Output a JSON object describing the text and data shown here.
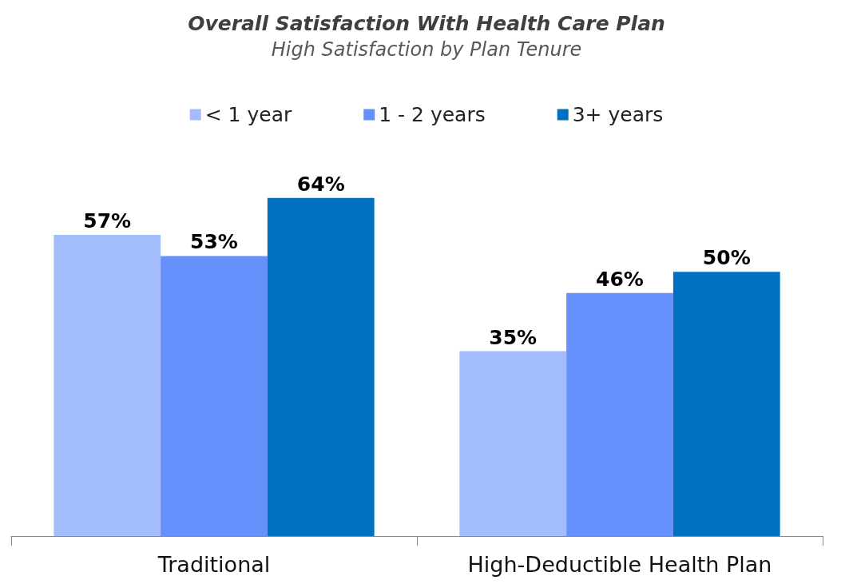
{
  "chart_data": {
    "type": "bar",
    "title": "Overall Satisfaction With Health Care Plan",
    "subtitle": "High Satisfaction by Plan Tenure",
    "categories": [
      "Traditional",
      "High-Deductible Health Plan"
    ],
    "series": [
      {
        "name": "< 1 year",
        "color": "#a3bdfc",
        "values": [
          57,
          35
        ],
        "value_labels": [
          "57%",
          "35%"
        ]
      },
      {
        "name": "1 - 2 years",
        "color": "#6690fc",
        "values": [
          53,
          46
        ],
        "value_labels": [
          "53%",
          "46%"
        ]
      },
      {
        "name": "3+ years",
        "color": "#0070c0",
        "values": [
          64,
          50
        ],
        "value_labels": [
          "64%",
          "50%"
        ]
      }
    ],
    "legend": "top",
    "grid": false
  }
}
